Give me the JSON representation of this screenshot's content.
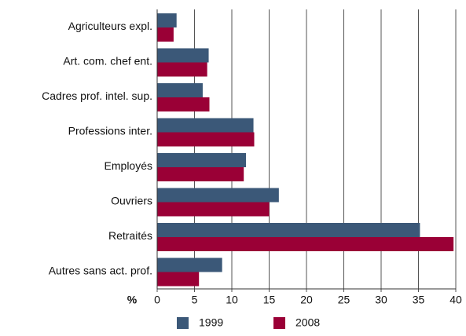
{
  "chart_data": {
    "type": "hbar",
    "x_label": "%",
    "categories": [
      "Agriculteurs expl.",
      "Art. com. chef ent.",
      "Cadres prof. intel. sup.",
      "Professions inter.",
      "Employés",
      "Ouvriers",
      "Retraités",
      "Autres sans act. prof."
    ],
    "series": [
      {
        "name": "1999",
        "color": "#3b5878",
        "values": [
          2.6,
          6.9,
          6.1,
          12.9,
          11.9,
          16.3,
          35.2,
          8.7
        ]
      },
      {
        "name": "2008",
        "color": "#9a0036",
        "values": [
          2.2,
          6.7,
          7.0,
          13.0,
          11.6,
          15.0,
          39.7,
          5.6
        ]
      }
    ],
    "xlim": [
      0,
      40
    ],
    "xticks": [
      0,
      5,
      10,
      15,
      20,
      25,
      30,
      35,
      40
    ],
    "grid": true
  }
}
